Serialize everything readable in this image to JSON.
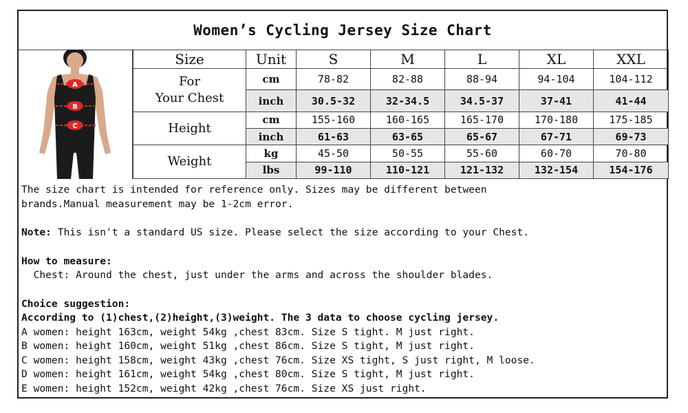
{
  "title": "Women’s Cycling Jersey Size Chart",
  "figure": {
    "markers": [
      "A",
      "B",
      "C"
    ],
    "colors": {
      "skin": "#d9a98a",
      "clothing": "#1b1b1b",
      "marker": "#d92a2a"
    }
  },
  "table": {
    "header": {
      "size_label": "Size",
      "unit_label": "Unit",
      "sizes": [
        "S",
        "M",
        "L",
        "XL",
        "XXL"
      ]
    },
    "groups": [
      {
        "label_line1": "For",
        "label_line2": "Your Chest",
        "rows": [
          {
            "unit": "cm",
            "values": [
              "78-82",
              "82-88",
              "88-94",
              "94-104",
              "104-112"
            ]
          },
          {
            "unit": "inch",
            "values": [
              "30.5-32",
              "32-34.5",
              "34.5-37",
              "37-41",
              "41-44"
            ]
          }
        ]
      },
      {
        "label_line1": "Height",
        "label_line2": "",
        "rows": [
          {
            "unit": "cm",
            "values": [
              "155-160",
              "160-165",
              "165-170",
              "170-180",
              "175-185"
            ]
          },
          {
            "unit": "inch",
            "values": [
              "61-63",
              "63-65",
              "65-67",
              "67-71",
              "69-73"
            ]
          }
        ]
      },
      {
        "label_line1": "Weight",
        "label_line2": "",
        "rows": [
          {
            "unit": "kg",
            "values": [
              "45-50",
              "50-55",
              "55-60",
              "60-70",
              "70-80"
            ]
          },
          {
            "unit": "lbs",
            "values": [
              "99-110",
              "110-121",
              "121-132",
              "132-154",
              "154-176"
            ]
          }
        ]
      }
    ]
  },
  "notes": {
    "disclaimer_line1": "The size chart is intended for reference only. Sizes may be different between",
    "disclaimer_line2": "brands.Manual measurement may be 1-2cm error.",
    "note_label": "Note:",
    "note_text": " This isn't a standard US size. Please select the size according to your Chest.",
    "measure_heading": "How to measure:",
    "measure_text": "  Chest: Around the chest, just under the arms and across the shoulder blades.",
    "choice_heading": "Choice suggestion:",
    "choice_subheading": "According to (1)chest,(2)height,(3)weight. The 3 data to choose cycling jersey.",
    "examples": [
      "A women: height 163cm, weight 54kg ,chest 83cm. Size S tight. M just right.",
      "B women: height 160cm, weight 51kg ,chest 86cm. Size S tight, M just right.",
      "C women: height 158cm, weight 43kg ,chest 76cm. Size XS tight, S just right, M loose.",
      "D women: height 161cm, weight 54kg ,chest 80cm. Size S tight, M just right.",
      "E women: height 152cm, weight 42kg ,chest 76cm. Size XS just right."
    ]
  }
}
